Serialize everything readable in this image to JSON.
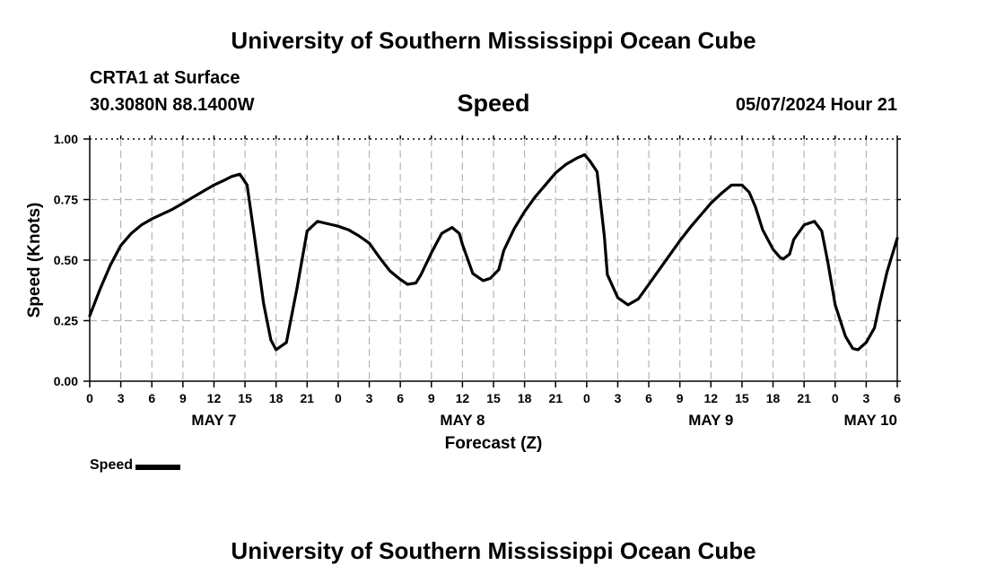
{
  "header": {
    "title": "University of Southern Mississippi Ocean Cube",
    "station": "CRTA1 at Surface",
    "coordinates": "30.3080N  88.1400W",
    "variable": "Speed",
    "datetime": "05/07/2024 Hour 21"
  },
  "footer": {
    "title": "University of Southern Mississippi Ocean Cube"
  },
  "legend": {
    "label": "Speed",
    "color": "#000000"
  },
  "chart_data": {
    "type": "line",
    "title": "Speed",
    "xlabel": "Forecast (Z)",
    "ylabel": "Speed (Knots)",
    "xlim": [
      0,
      78
    ],
    "ylim": [
      0,
      1
    ],
    "y_ticks": [
      0,
      0.25,
      0.5,
      0.75,
      1
    ],
    "y_tick_labels": [
      "0.00",
      "0.25",
      "0.50",
      "0.75",
      "1.00"
    ],
    "x_ticks": [
      0,
      3,
      6,
      9,
      12,
      15,
      18,
      21,
      24,
      27,
      30,
      33,
      36,
      39,
      42,
      45,
      48,
      51,
      54,
      57,
      60,
      63,
      66,
      69,
      72,
      75,
      78
    ],
    "x_tick_labels": [
      "0",
      "3",
      "6",
      "9",
      "12",
      "15",
      "18",
      "21",
      "0",
      "3",
      "6",
      "9",
      "12",
      "15",
      "18",
      "21",
      "0",
      "3",
      "6",
      "9",
      "12",
      "15",
      "18",
      "21",
      "0",
      "3",
      "6"
    ],
    "date_labels": [
      {
        "x": 12,
        "label": "MAY 7"
      },
      {
        "x": 36,
        "label": "MAY 8"
      },
      {
        "x": 60,
        "label": "MAY 9"
      },
      {
        "x": 78,
        "label": "MAY 10"
      }
    ],
    "grid": true,
    "series": [
      {
        "name": "Speed",
        "x": [
          0,
          1,
          2,
          3,
          4,
          5,
          6,
          7,
          8,
          9,
          10,
          11,
          12,
          13,
          13.7,
          14.5,
          15.2,
          16,
          16.8,
          17.5,
          18,
          19,
          20,
          21,
          22,
          23,
          24,
          25,
          26,
          27,
          28,
          29,
          30,
          30.7,
          31.5,
          32,
          33,
          34,
          35,
          35.7,
          36,
          37,
          38,
          38.7,
          39.5,
          40,
          41,
          42,
          43,
          44,
          45,
          46,
          47,
          47.8,
          48.3,
          49,
          49.7,
          50,
          51,
          52,
          53,
          54,
          55,
          56,
          57,
          58,
          59,
          60,
          61,
          62,
          63,
          63.7,
          64.3,
          65,
          66,
          66.7,
          67,
          67.6,
          68,
          69,
          70,
          70.7,
          71.3,
          72,
          73,
          73.7,
          74.2,
          75,
          75.8,
          76.3,
          77,
          78
        ],
        "y": [
          0.27,
          0.38,
          0.48,
          0.56,
          0.61,
          0.645,
          0.67,
          0.69,
          0.71,
          0.735,
          0.76,
          0.785,
          0.81,
          0.83,
          0.845,
          0.855,
          0.81,
          0.57,
          0.32,
          0.17,
          0.13,
          0.16,
          0.38,
          0.62,
          0.66,
          0.65,
          0.64,
          0.625,
          0.6,
          0.57,
          0.51,
          0.455,
          0.42,
          0.4,
          0.405,
          0.44,
          0.53,
          0.61,
          0.635,
          0.61,
          0.565,
          0.445,
          0.415,
          0.425,
          0.46,
          0.54,
          0.63,
          0.7,
          0.76,
          0.81,
          0.86,
          0.895,
          0.92,
          0.935,
          0.91,
          0.865,
          0.6,
          0.44,
          0.345,
          0.315,
          0.34,
          0.4,
          0.46,
          0.52,
          0.58,
          0.635,
          0.685,
          0.735,
          0.775,
          0.81,
          0.81,
          0.78,
          0.72,
          0.625,
          0.545,
          0.51,
          0.505,
          0.525,
          0.585,
          0.645,
          0.66,
          0.62,
          0.49,
          0.315,
          0.185,
          0.135,
          0.13,
          0.16,
          0.22,
          0.32,
          0.45,
          0.59
        ]
      }
    ]
  }
}
